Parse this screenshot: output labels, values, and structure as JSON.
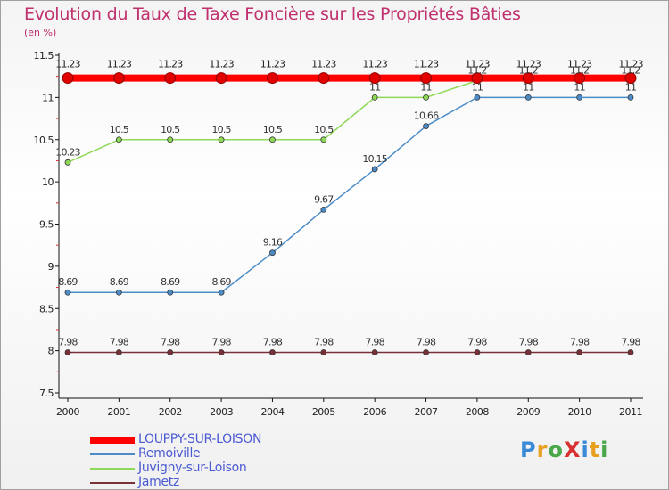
{
  "page": {
    "title": "Evolution du Taux de Taxe Foncière sur les Propriétés Bâties",
    "subtitle": "(en %)",
    "logo": "ProXiti"
  },
  "chart_data": {
    "type": "line",
    "title": "Evolution du Taux de Taxe Foncière sur les Propriétés Bâties",
    "ylabel": "(en %)",
    "xlabel": "",
    "x": [
      "2000",
      "2001",
      "2002",
      "2003",
      "2004",
      "2005",
      "2006",
      "2007",
      "2008",
      "2009",
      "2010",
      "2011"
    ],
    "ylim": [
      7.5,
      11.5
    ],
    "yticks": [
      "7.5",
      "8",
      "8.5",
      "9",
      "9.5",
      "10",
      "10.5",
      "11",
      "11.5"
    ],
    "grid": false,
    "legend_position": "bottom-left",
    "series": [
      {
        "name": "LOUPPY-SUR-LOISON",
        "color": "#ff0000",
        "values": [
          11.23,
          11.23,
          11.23,
          11.23,
          11.23,
          11.23,
          11.23,
          11.23,
          11.23,
          11.23,
          11.23,
          11.23
        ],
        "labels": [
          "11.23",
          "11.23",
          "11.23",
          "11.23",
          "11.23",
          "11.23",
          "11.23",
          "11.23",
          "11.23",
          "11.23",
          "11.23",
          "11.23"
        ]
      },
      {
        "name": "Remoiville",
        "color": "#4b8cc8",
        "values": [
          8.69,
          8.69,
          8.69,
          8.69,
          9.16,
          9.67,
          10.15,
          10.66,
          11,
          11,
          11,
          11
        ],
        "labels": [
          "8.69",
          "8.69",
          "8.69",
          "8.69",
          "9.16",
          "9.67",
          "10.15",
          "10.66",
          "11",
          "11",
          "11",
          "11"
        ]
      },
      {
        "name": "Juvigny-sur-Loison",
        "color": "#8ed957",
        "values": [
          10.23,
          10.5,
          10.5,
          10.5,
          10.5,
          10.5,
          11,
          11,
          11.2,
          11.2,
          11.2,
          11.2
        ],
        "labels": [
          "10.23",
          "10.5",
          "10.5",
          "10.5",
          "10.5",
          "10.5",
          "11",
          "11",
          "11.2",
          "11.2",
          "11.2",
          "11.2"
        ]
      },
      {
        "name": "Jametz",
        "color": "#7a3038",
        "values": [
          7.98,
          7.98,
          7.98,
          7.98,
          7.98,
          7.98,
          7.98,
          7.98,
          7.98,
          7.98,
          7.98,
          7.98
        ],
        "labels": [
          "7.98",
          "7.98",
          "7.98",
          "7.98",
          "7.98",
          "7.98",
          "7.98",
          "7.98",
          "7.98",
          "7.98",
          "7.98",
          "7.98"
        ]
      }
    ]
  }
}
